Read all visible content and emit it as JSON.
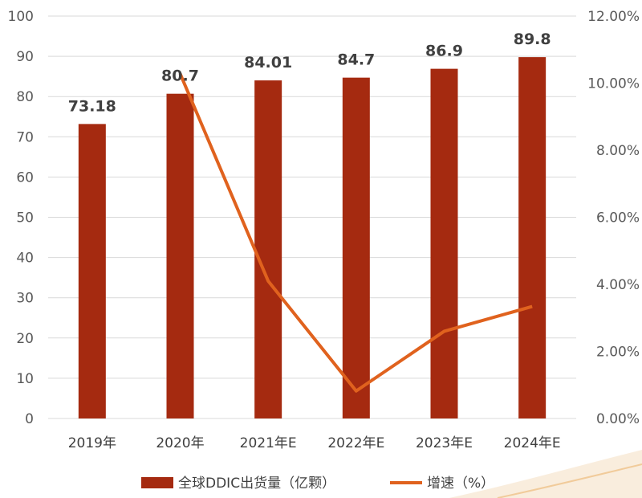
{
  "chart_data": {
    "type": "bar",
    "categories": [
      "2019年",
      "2020年",
      "2021年E",
      "2022年E",
      "2023年E",
      "2024年E"
    ],
    "series": [
      {
        "name": "全球DDIC出货量（亿颗）",
        "type": "bar",
        "axis": "left",
        "values": [
          73.18,
          80.7,
          84.01,
          84.7,
          86.9,
          89.8
        ]
      },
      {
        "name": "增速（%）",
        "type": "line",
        "axis": "right",
        "values": [
          null,
          10.28,
          4.1,
          0.82,
          2.6,
          3.34
        ]
      }
    ],
    "data_labels": [
      "73.18",
      "80.7",
      "84.01",
      "84.7",
      "86.9",
      "89.8"
    ],
    "y_left": {
      "ylim": [
        0,
        100
      ],
      "ticks": [
        0,
        10,
        20,
        30,
        40,
        50,
        60,
        70,
        80,
        90,
        100
      ],
      "tick_labels": [
        "0",
        "10",
        "20",
        "30",
        "40",
        "50",
        "60",
        "70",
        "80",
        "90",
        "100"
      ]
    },
    "y_right": {
      "ylim": [
        0,
        12
      ],
      "ticks": [
        0,
        2,
        4,
        6,
        8,
        10,
        12
      ],
      "tick_labels": [
        "0.00%",
        "2.00%",
        "4.00%",
        "6.00%",
        "8.00%",
        "10.00%",
        "12.00%"
      ]
    },
    "grid": true,
    "legend_position": "bottom",
    "colors": {
      "bar": "#a52a10",
      "line": "#e0621e",
      "grid": "#d9d9d9",
      "text": "#404040",
      "accent": "#f5d7b0"
    }
  }
}
